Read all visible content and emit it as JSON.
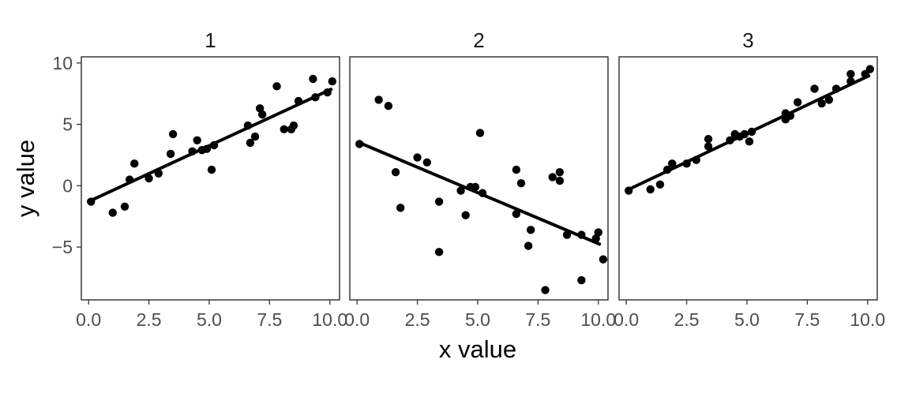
{
  "chart_data": {
    "type": "scatter",
    "xlabel": "x value",
    "ylabel": "y value",
    "xlim": [
      -0.3,
      10.4
    ],
    "ylim": [
      -9.3,
      10.5
    ],
    "x_ticks": [
      0,
      2.5,
      5,
      7.5,
      10
    ],
    "x_tick_labels": [
      "0.0",
      "2.5",
      "5.0",
      "7.5",
      "10.0"
    ],
    "y_ticks": [
      -5,
      0,
      5,
      10
    ],
    "y_tick_labels": [
      "−5",
      "0",
      "5",
      "10"
    ],
    "grid": false,
    "point_color": "#000000",
    "line_color": "#000000",
    "panels": [
      {
        "title": "1",
        "fit": [
          [
            0.1,
            -1.2
          ],
          [
            10.1,
            7.9
          ]
        ],
        "points": [
          [
            0.1,
            -1.3
          ],
          [
            1.0,
            -2.2
          ],
          [
            1.5,
            -1.7
          ],
          [
            1.7,
            0.5
          ],
          [
            1.9,
            1.8
          ],
          [
            2.5,
            0.6
          ],
          [
            2.9,
            1.0
          ],
          [
            3.4,
            2.6
          ],
          [
            3.5,
            4.2
          ],
          [
            4.3,
            2.8
          ],
          [
            4.5,
            3.7
          ],
          [
            4.7,
            2.9
          ],
          [
            4.9,
            3.0
          ],
          [
            5.1,
            1.3
          ],
          [
            5.2,
            3.3
          ],
          [
            6.6,
            4.9
          ],
          [
            6.7,
            3.5
          ],
          [
            6.9,
            4.0
          ],
          [
            7.1,
            6.3
          ],
          [
            7.2,
            5.8
          ],
          [
            7.8,
            8.1
          ],
          [
            8.1,
            4.6
          ],
          [
            8.4,
            4.6
          ],
          [
            8.5,
            4.9
          ],
          [
            8.7,
            6.9
          ],
          [
            9.3,
            8.7
          ],
          [
            9.4,
            7.2
          ],
          [
            9.9,
            7.6
          ],
          [
            10.1,
            8.5
          ]
        ]
      },
      {
        "title": "2",
        "fit": [
          [
            0.1,
            3.5
          ],
          [
            10.1,
            -4.8
          ]
        ],
        "points": [
          [
            0.1,
            3.4
          ],
          [
            0.9,
            7.0
          ],
          [
            1.3,
            6.5
          ],
          [
            1.6,
            1.1
          ],
          [
            1.8,
            -1.8
          ],
          [
            2.5,
            2.3
          ],
          [
            2.9,
            1.9
          ],
          [
            3.4,
            -1.3
          ],
          [
            3.4,
            -5.4
          ],
          [
            4.3,
            -0.4
          ],
          [
            4.5,
            -2.4
          ],
          [
            4.7,
            -0.1
          ],
          [
            4.9,
            -0.1
          ],
          [
            5.1,
            4.3
          ],
          [
            5.2,
            -0.6
          ],
          [
            6.6,
            -2.3
          ],
          [
            6.6,
            1.3
          ],
          [
            6.8,
            0.2
          ],
          [
            7.1,
            -4.9
          ],
          [
            7.2,
            -3.6
          ],
          [
            7.8,
            -8.5
          ],
          [
            8.1,
            0.7
          ],
          [
            8.4,
            1.1
          ],
          [
            8.4,
            0.4
          ],
          [
            8.7,
            -4.0
          ],
          [
            9.3,
            -7.7
          ],
          [
            9.3,
            -4.0
          ],
          [
            9.9,
            -4.3
          ],
          [
            10.0,
            -3.8
          ],
          [
            10.2,
            -6.0
          ]
        ]
      },
      {
        "title": "3",
        "fit": [
          [
            0.1,
            -0.3
          ],
          [
            10.1,
            9.0
          ]
        ],
        "points": [
          [
            0.1,
            -0.4
          ],
          [
            1.0,
            -0.3
          ],
          [
            1.4,
            0.1
          ],
          [
            1.7,
            1.3
          ],
          [
            1.9,
            1.8
          ],
          [
            2.5,
            1.8
          ],
          [
            2.9,
            2.1
          ],
          [
            3.4,
            3.2
          ],
          [
            3.4,
            3.8
          ],
          [
            4.3,
            3.7
          ],
          [
            4.5,
            4.2
          ],
          [
            4.7,
            4.0
          ],
          [
            4.9,
            4.2
          ],
          [
            5.1,
            3.6
          ],
          [
            5.2,
            4.4
          ],
          [
            6.6,
            5.9
          ],
          [
            6.6,
            5.4
          ],
          [
            6.8,
            5.7
          ],
          [
            7.1,
            6.8
          ],
          [
            7.8,
            7.9
          ],
          [
            8.1,
            6.7
          ],
          [
            8.4,
            7.0
          ],
          [
            8.7,
            7.9
          ],
          [
            9.3,
            9.1
          ],
          [
            9.3,
            8.5
          ],
          [
            9.9,
            9.1
          ],
          [
            10.1,
            9.5
          ]
        ]
      }
    ]
  }
}
